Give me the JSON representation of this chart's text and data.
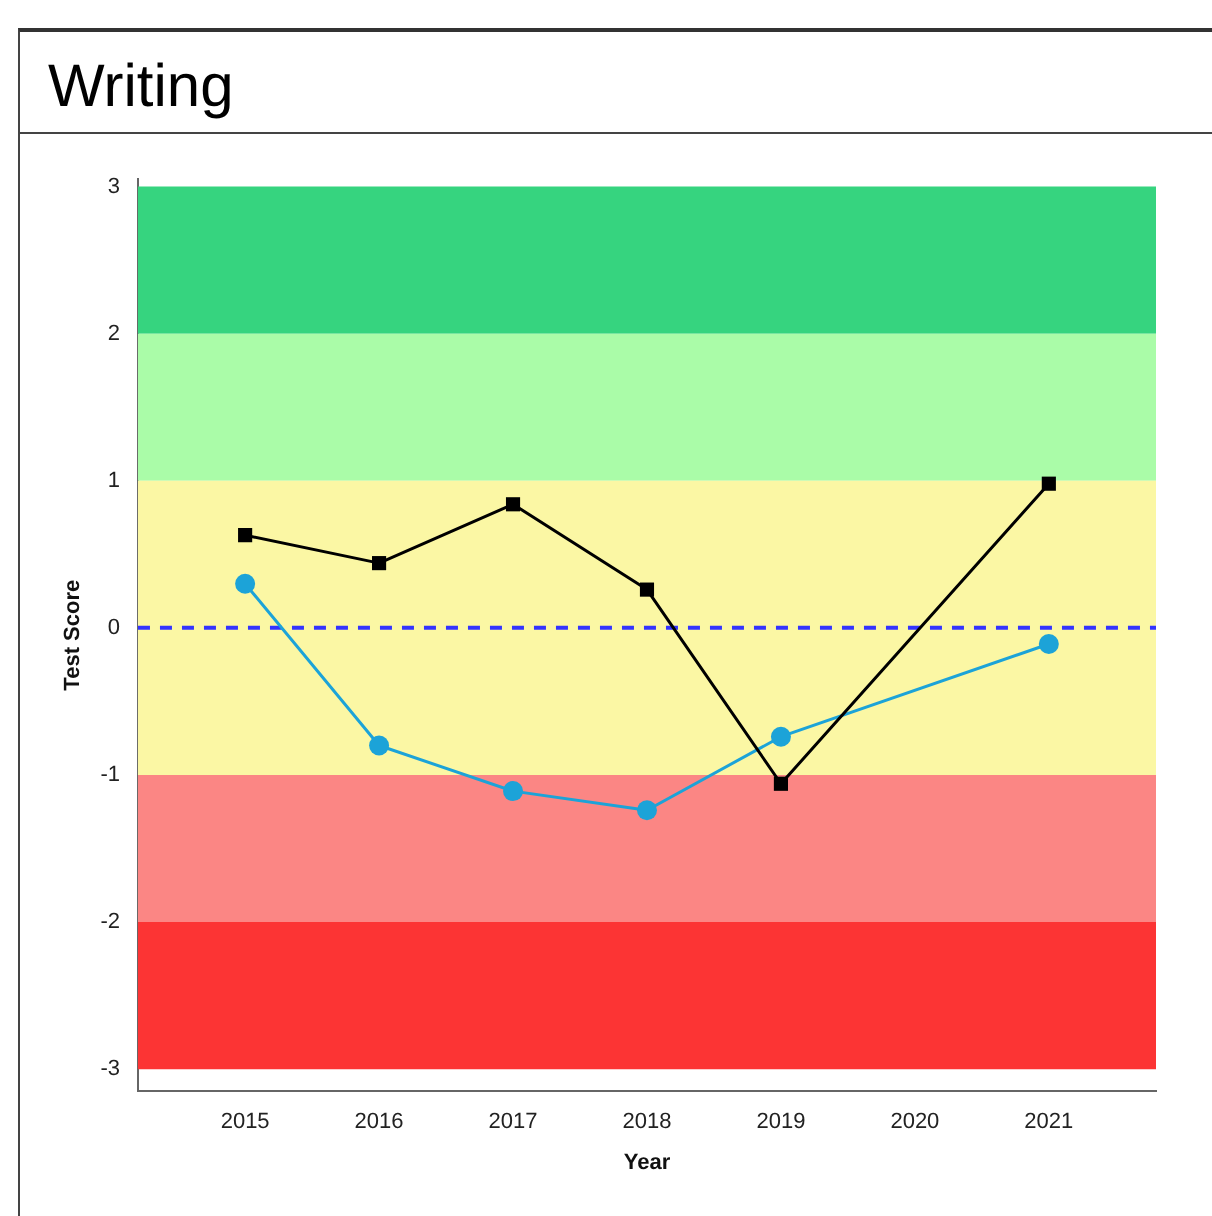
{
  "chart_data": {
    "type": "line",
    "title": "Writing",
    "xlabel": "Year",
    "ylabel": "Test Score",
    "x": [
      2015,
      2016,
      2017,
      2018,
      2019,
      2021
    ],
    "series": [
      {
        "color": "#000000",
        "marker": "square",
        "values": [
          0.63,
          0.44,
          0.84,
          0.26,
          -1.06,
          0.98
        ]
      },
      {
        "color": "#1ca3d8",
        "marker": "circle",
        "values": [
          0.3,
          -0.8,
          -1.11,
          -1.24,
          -0.74,
          -0.11
        ]
      }
    ],
    "xlim": [
      2014.2,
      2021.8
    ],
    "xticks": [
      2015,
      2016,
      2017,
      2018,
      2019,
      2020,
      2021
    ],
    "ylim": [
      -3.15,
      3.05
    ],
    "yticks": [
      -3,
      -2,
      -1,
      0,
      1,
      2,
      3
    ],
    "bands": [
      {
        "axis": "y",
        "from": 2,
        "to": 3,
        "color": "#36d47f"
      },
      {
        "axis": "y",
        "from": 1,
        "to": 2,
        "color": "#aafca8"
      },
      {
        "axis": "y",
        "from": -1,
        "to": 1,
        "color": "#fbf7a4"
      },
      {
        "axis": "y",
        "from": -2,
        "to": -1,
        "color": "#fb8684"
      },
      {
        "axis": "y",
        "from": -3,
        "to": -2,
        "color": "#fc3434"
      }
    ],
    "ref_lines": [
      {
        "axis": "y",
        "value": 0,
        "color": "#3333ff",
        "line_style": "dashed"
      }
    ],
    "grid": false,
    "legend": false
  }
}
